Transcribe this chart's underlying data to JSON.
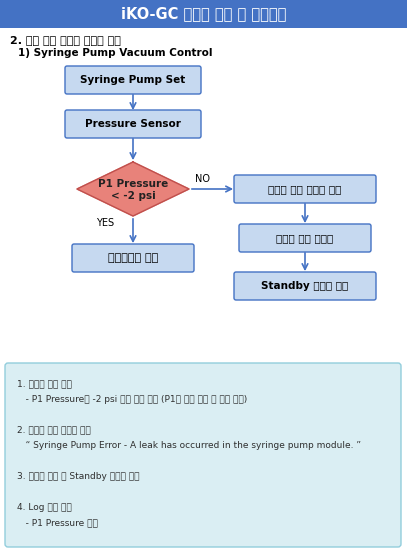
{
  "title": "iKO-GC 이벤트 알림 및 보호모드",
  "title_bg": "#4472c4",
  "title_fg": "#ffffff",
  "subtitle1": "2. 특수 제어 항목의 서비스 알림",
  "subtitle2": "1) Syringe Pump Vacuum Control",
  "box1_text": "Syringe Pump Set",
  "box2_text": "Pressure Sensor",
  "diamond_line1": "P1 Pressure",
  "diamond_line2": "< -2 psi",
  "box3_text": "스케줄대로 동작",
  "box4_text": "서비스 알림 메시지 표시",
  "box5_text": "스케줄 중단 초기화",
  "box6_text": "Standby 스케줄 실행",
  "yes_label": "YES",
  "no_label": "NO",
  "box_fill": "#c6d9f0",
  "box_edge": "#4472c4",
  "diamond_fill": "#e8827a",
  "diamond_edge": "#c0504d",
  "arrow_color": "#4472c4",
  "note_bg": "#daeef3",
  "note_border": "#92cddc",
  "note_lines": [
    "1. 서비스 알림 조건",
    "   - P1 Pressure가 -2 psi 보다 높을 경우 (P1은 최대 감압 시 순간 압력)",
    "",
    "2. 서비스 알림 메시지 표시",
    "   “ Syringe Pump Error - A leak has occurred in the syringe pump module. ”",
    "",
    "3. 스케줄 중단 후 Standby 스케줄 실행",
    "",
    "4. Log 파일 작성",
    "   - P1 Pressure 표시"
  ]
}
